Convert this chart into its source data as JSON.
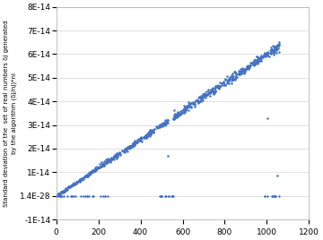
{
  "scatter_color": "#4472C4",
  "marker_size": 2.5,
  "xlim": [
    0,
    1200
  ],
  "ylim": [
    -1e-14,
    8e-14
  ],
  "xticks": [
    0,
    200,
    400,
    600,
    800,
    1000,
    1200
  ],
  "ytick_positions": [
    -1e-14,
    0,
    1e-14,
    2e-14,
    3e-14,
    4e-14,
    5e-14,
    6e-14,
    7e-14,
    8e-14
  ],
  "ytick_labels": [
    "-1E-14",
    "1.4E-28",
    "1E-14",
    "2E-14",
    "3E-14",
    "4E-14",
    "5E-14",
    "6E-14",
    "7E-14",
    "8E-14"
  ],
  "ylabel": "Standard deviation of the  set of real numbers δj generated\nby the algorithm (δj/nj)*ni",
  "background_color": "#ffffff",
  "grid_color": "#d3d3d3",
  "tick_fontsize": 6.5,
  "ylabel_fontsize": 5.0
}
